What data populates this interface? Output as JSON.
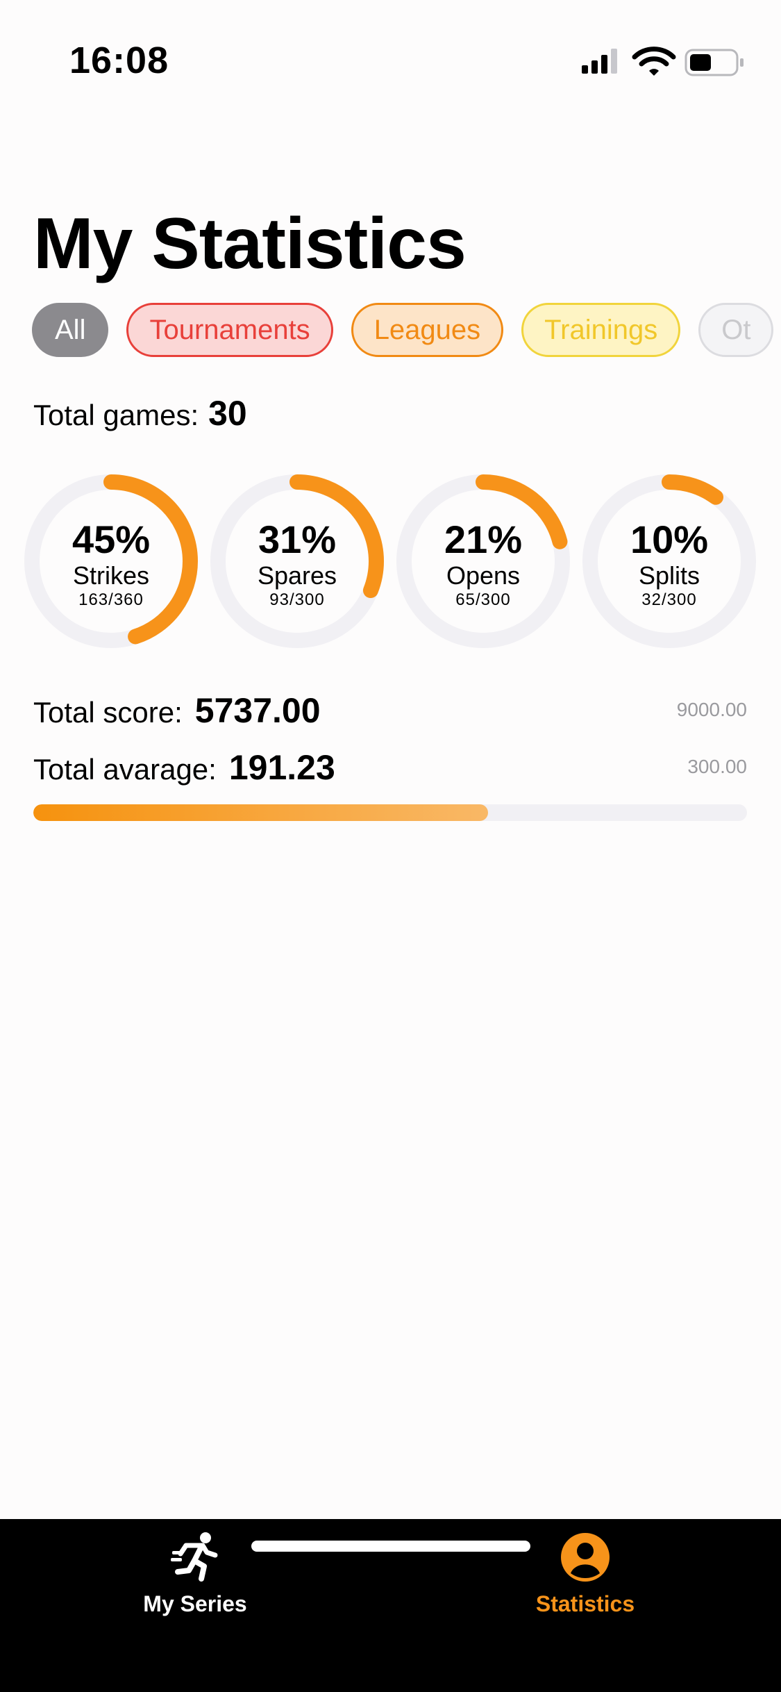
{
  "status_bar": {
    "time": "16:08",
    "icons": [
      "signal-icon",
      "wifi-icon",
      "battery-icon"
    ],
    "battery_level": 0.45
  },
  "header": {
    "title": "My Statistics"
  },
  "filters": {
    "chips": [
      {
        "label": "All",
        "selected": true,
        "color": "#8b8a8e"
      },
      {
        "label": "Tournaments",
        "selected": false,
        "color": "#e8403a"
      },
      {
        "label": "Leagues",
        "selected": false,
        "color": "#f18a14"
      },
      {
        "label": "Trainings",
        "selected": false,
        "color": "#f1c72a"
      },
      {
        "label": "Ot",
        "selected": false,
        "color": "#c9c9cc"
      }
    ]
  },
  "summary": {
    "games_label": "Total games:",
    "games_value": "30"
  },
  "rings": [
    {
      "percent_text": "45%",
      "label": "Strikes",
      "ratio": "163/360",
      "fraction": 0.45
    },
    {
      "percent_text": "31%",
      "label": "Spares",
      "ratio": "93/300",
      "fraction": 0.31
    },
    {
      "percent_text": "21%",
      "label": "Opens",
      "ratio": "65/300",
      "fraction": 0.21
    },
    {
      "percent_text": "10%",
      "label": "Splits",
      "ratio": "32/300",
      "fraction": 0.1
    }
  ],
  "score": {
    "total_label": "Total score:",
    "total_value": "5737.00",
    "total_max": "9000.00",
    "average_label": "Total avarage:",
    "average_value": "191.23",
    "average_max": "300.00",
    "progress_fraction": 0.637
  },
  "tabs": [
    {
      "label": "My Series",
      "icon": "running-person-icon",
      "active": false
    },
    {
      "label": "Statistics",
      "icon": "person-circle-icon",
      "active": true
    }
  ],
  "colors": {
    "accent": "#f7931a",
    "ring_track": "#f1f0f4",
    "tab_active": "#f7931a",
    "tab_inactive": "#ffffff"
  }
}
